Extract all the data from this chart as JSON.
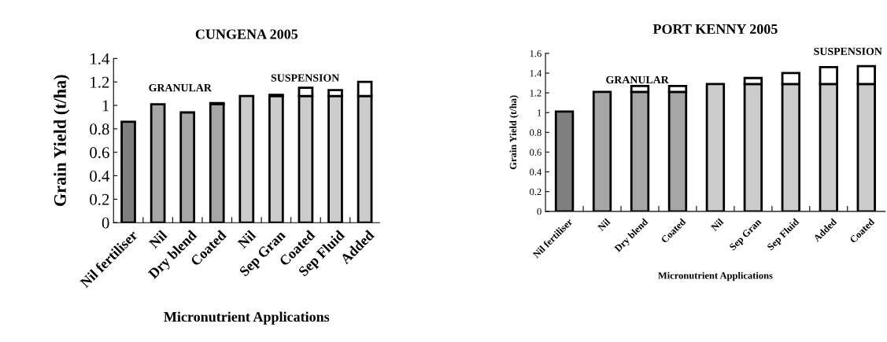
{
  "chart_data": [
    {
      "type": "bar",
      "title": "CUNGENA 2005",
      "xlabel": "Micronutrient Applications",
      "ylabel": "Grain Yield (t/ha)",
      "stacked": true,
      "categories": [
        "Nil fertiliser",
        "Nil",
        "Dry blend",
        "Coated",
        "Nil",
        "Sep Gran",
        "Coated",
        "Sep Fluid",
        "Added"
      ],
      "series": [
        {
          "colors": [
            "#7f7f7f",
            "#a6a6a6",
            "#a6a6a6",
            "#a6a6a6",
            "#cccccc",
            "#cccccc",
            "#cccccc",
            "#cccccc",
            "#cccccc"
          ],
          "values": [
            0.86,
            1.01,
            0.94,
            1.01,
            1.08,
            1.08,
            1.08,
            1.08,
            1.08
          ]
        },
        {
          "color": "#ffffff",
          "values": [
            null,
            null,
            null,
            0.01,
            null,
            0.01,
            0.07,
            0.05,
            0.12
          ]
        }
      ],
      "ylim": [
        0,
        1.4
      ],
      "yticks": [
        0,
        0.2,
        0.4,
        0.6,
        0.8,
        1,
        1.2,
        1.4
      ],
      "grid": false,
      "legend": false,
      "annotations": [
        "GRANULAR",
        "SUSPENSION"
      ]
    },
    {
      "type": "bar",
      "title": "PORT KENNY 2005",
      "xlabel": "Micronutrient Applications",
      "ylabel": "Grain Yield (t/ha)",
      "stacked": true,
      "categories": [
        "Nil fertiliser",
        "Nil",
        "Dry blend",
        "Coated",
        "Nil",
        "Sep Gran",
        "Sep Fluid",
        "Added",
        "Coated"
      ],
      "series": [
        {
          "colors": [
            "#7f7f7f",
            "#a6a6a6",
            "#a6a6a6",
            "#a6a6a6",
            "#cccccc",
            "#cccccc",
            "#cccccc",
            "#cccccc",
            "#cccccc"
          ],
          "values": [
            1.01,
            1.21,
            1.21,
            1.21,
            1.29,
            1.29,
            1.29,
            1.29,
            1.29
          ]
        },
        {
          "color": "#ffffff",
          "values": [
            null,
            null,
            0.06,
            0.06,
            null,
            0.06,
            0.11,
            0.17,
            0.18
          ]
        }
      ],
      "ylim": [
        0,
        1.6
      ],
      "yticks": [
        0,
        0.2,
        0.4,
        0.6,
        0.8,
        1,
        1.2,
        1.4,
        1.6
      ],
      "grid": false,
      "legend": false,
      "annotations": [
        "GRANULAR",
        "SUSPENSION"
      ]
    }
  ]
}
